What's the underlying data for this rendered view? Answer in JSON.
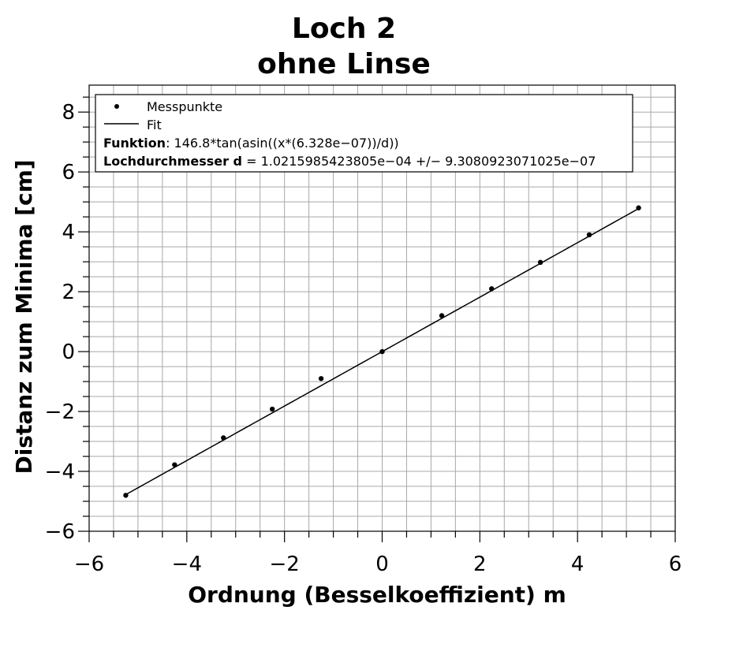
{
  "chart_data": {
    "type": "scatter",
    "title_lines": [
      "Loch 2",
      "ohne Linse"
    ],
    "xlabel": "Ordnung (Besselkoeffizient) m",
    "ylabel": "Distanz zum Minima [cm]",
    "xlim": [
      -6,
      6
    ],
    "ylim": [
      -6,
      8.9
    ],
    "x_ticks": [
      -6,
      -4,
      -2,
      0,
      2,
      4,
      6
    ],
    "x_tick_labels": [
      "−6",
      "−4",
      "−2",
      "0",
      "2",
      "4",
      "6"
    ],
    "y_ticks": [
      -6,
      -4,
      -2,
      0,
      2,
      4,
      6,
      8
    ],
    "y_tick_labels": [
      "−6",
      "−4",
      "−2",
      "0",
      "2",
      "4",
      "6",
      "8"
    ],
    "grid": true,
    "legend_position": "top-left",
    "series": [
      {
        "name": "Messpunkte",
        "kind": "points",
        "x": [
          -5.25,
          -4.25,
          -3.25,
          -2.25,
          -1.25,
          0,
          1.22,
          2.24,
          3.24,
          4.24,
          5.25
        ],
        "y": [
          -4.8,
          -3.78,
          -2.88,
          -1.92,
          -0.9,
          0,
          1.2,
          2.1,
          2.98,
          3.9,
          4.8
        ]
      },
      {
        "name": "Fit",
        "kind": "line",
        "formula": "146.8*tan(asin((x*(6.328e-07))/d))",
        "wavelength_m": 6.328e-07,
        "distance_cm": 146.8,
        "d": 0.00010215985423805,
        "x_range": [
          -5.25,
          5.25
        ]
      }
    ],
    "legend_info": [
      {
        "bold": "Funktion",
        "text": ": 146.8*tan(asin((x*(6.328e−07))/d))"
      },
      {
        "bold": "Lochdurchmesser d",
        "text": " = 1.0215985423805e−04 +/− 9.3080923071025e−07"
      }
    ]
  }
}
